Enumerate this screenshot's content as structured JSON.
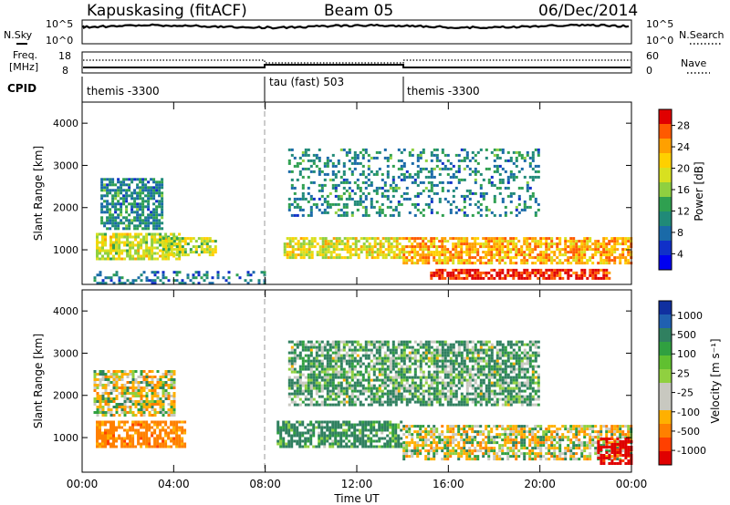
{
  "header": {
    "radar": "Kapuskasing (fitACF)",
    "beam": "Beam 05",
    "date": "06/Dec/2014"
  },
  "noise_panel": {
    "left_label": "N.Sky",
    "right_label": "N.Search",
    "left_ticks": [
      "10^5",
      "10^0"
    ],
    "right_ticks": [
      "10^5",
      "10^0"
    ]
  },
  "freq_panel": {
    "left_label_1": "Freq.",
    "left_label_2": "[MHz]",
    "right_label": "Nave",
    "left_ticks": [
      "18",
      "8"
    ],
    "right_ticks": [
      "60",
      "0"
    ]
  },
  "cpid": {
    "label": "CPID",
    "segments": [
      {
        "name": "themis -3300",
        "start_hour": 0
      },
      {
        "name": "tau (fast) 503",
        "start_hour": 8
      },
      {
        "name": "themis -3300",
        "start_hour": 14
      }
    ]
  },
  "chart_data": [
    {
      "type": "heatmap",
      "title": "Power [dB]",
      "ylabel": "Slant Range [km]",
      "xlabel": "Time UT",
      "ylim": [
        180,
        4500
      ],
      "xlim": [
        0,
        24
      ],
      "yticks": [
        1000,
        2000,
        3000,
        4000
      ],
      "colorbar": {
        "label": "Power [dB]",
        "ticks": [
          "28",
          "24",
          "20",
          "16",
          "12",
          "8",
          "4"
        ],
        "colors": [
          "#e00000",
          "#ff5a00",
          "#ffa000",
          "#ffd000",
          "#d8e020",
          "#8fd040",
          "#2fa050",
          "#208a78",
          "#1a6aa8",
          "#1030c8",
          "#0000f0"
        ]
      },
      "regions": [
        {
          "t0": 0.6,
          "t1": 4.2,
          "r0": 800,
          "r1": 1400,
          "level": 18
        },
        {
          "t0": 0.8,
          "t1": 3.5,
          "r0": 1500,
          "r1": 2700,
          "level": 9
        },
        {
          "t0": 3.5,
          "t1": 5.8,
          "r0": 850,
          "r1": 1300,
          "level": 17
        },
        {
          "t0": 8.8,
          "t1": 14.0,
          "r0": 800,
          "r1": 1300,
          "level": 19
        },
        {
          "t0": 14.0,
          "t1": 24.0,
          "r0": 700,
          "r1": 1300,
          "level": 23
        },
        {
          "t0": 15.2,
          "t1": 23.0,
          "r0": 300,
          "r1": 550,
          "level": 30
        },
        {
          "t0": 9.0,
          "t1": 20.0,
          "r0": 1800,
          "r1": 3400,
          "level": 9
        },
        {
          "t0": 0.5,
          "t1": 8.0,
          "r0": 200,
          "r1": 500,
          "level": 7
        }
      ]
    },
    {
      "type": "heatmap",
      "title": "Velocity [m s^-1]",
      "ylabel": "Slant Range [km]",
      "xlabel": "Time UT",
      "ylim": [
        180,
        4500
      ],
      "xlim": [
        0,
        24
      ],
      "yticks": [
        1000,
        2000,
        3000,
        4000
      ],
      "xticks": [
        "00:00",
        "04:00",
        "08:00",
        "12:00",
        "16:00",
        "20:00",
        "00:00"
      ],
      "colorbar": {
        "label": "Velocity [m s⁻¹]",
        "ticks": [
          "1000",
          "500",
          "100",
          "25",
          "-25",
          "-100",
          "-500",
          "-1000"
        ],
        "colors": [
          "#1030a0",
          "#2060b0",
          "#308060",
          "#30a040",
          "#60c030",
          "#90d040",
          "#c8c8c0",
          "#c8c8c0",
          "#ffb000",
          "#ff8000",
          "#ff4000",
          "#e00000"
        ]
      },
      "regions": [
        {
          "t0": 0.6,
          "t1": 4.5,
          "r0": 800,
          "r1": 1400,
          "velocity": -200
        },
        {
          "t0": 0.5,
          "t1": 4.0,
          "r0": 1500,
          "r1": 2600,
          "velocity": 0
        },
        {
          "t0": 8.5,
          "t1": 14.0,
          "r0": 800,
          "r1": 1400,
          "velocity": 150
        },
        {
          "t0": 14.0,
          "t1": 24.0,
          "r0": 500,
          "r1": 1300,
          "velocity": 0
        },
        {
          "t0": 22.5,
          "t1": 24.0,
          "r0": 400,
          "r1": 1000,
          "velocity": -800
        },
        {
          "t0": 9.0,
          "t1": 20.0,
          "r0": 1800,
          "r1": 3300,
          "velocity": 100
        }
      ]
    }
  ]
}
